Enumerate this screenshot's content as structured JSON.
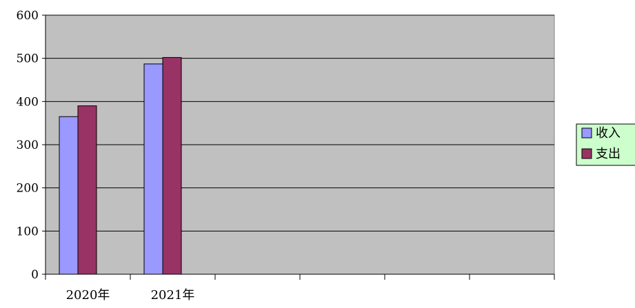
{
  "colors": {
    "plot_background": "#c0c0c0",
    "gridline": "#000000",
    "axis": "#000000",
    "legend_background": "#ccffcc"
  },
  "chart_data": {
    "type": "bar",
    "categories": [
      "2020年",
      "2021年",
      "",
      "",
      "",
      ""
    ],
    "series": [
      {
        "name": "收入",
        "color": "#9999ff",
        "values": [
          365,
          487,
          null,
          null,
          null,
          null
        ]
      },
      {
        "name": "支出",
        "color": "#993366",
        "values": [
          390,
          502,
          null,
          null,
          null,
          null
        ]
      }
    ],
    "ylim": [
      0,
      600
    ],
    "yticks": [
      0,
      100,
      200,
      300,
      400,
      500,
      600
    ],
    "grid": true,
    "legend": "right"
  }
}
